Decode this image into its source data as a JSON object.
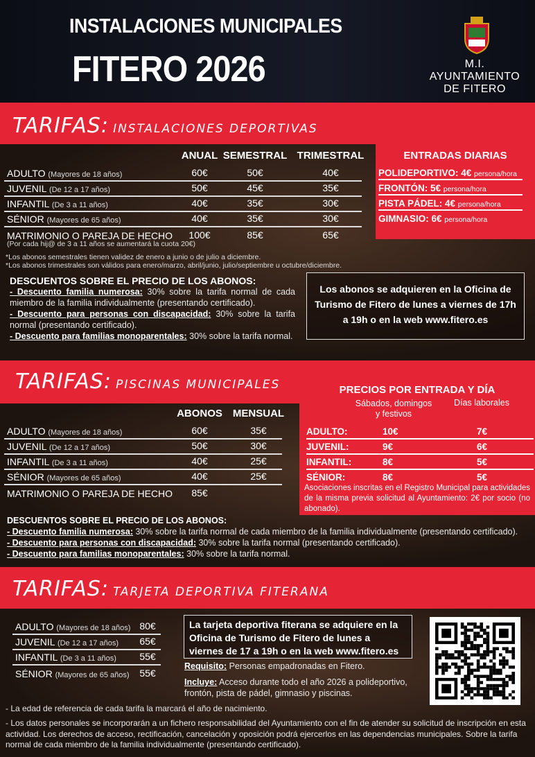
{
  "header": {
    "line1": "INSTALACIONES MUNICIPALES",
    "line2": "FITERO 2026",
    "org_line1": "M.I. AYUNTAMIENTO",
    "org_line2": "DE FITERO",
    "logo": "coat-of-arms"
  },
  "colors": {
    "accent": "#e52535",
    "dark": "#0f1118"
  },
  "deportivas": {
    "title_big": "TARIFAS:",
    "title_small": "Instalaciones deportivas",
    "columns": [
      "ANUAL",
      "SEMESTRAL",
      "TRIMESTRAL"
    ],
    "rows": [
      {
        "label": "ADULTO",
        "sub": "(Mayores de 18 años)",
        "values": [
          "60€",
          "50€",
          "40€"
        ]
      },
      {
        "label": "JUVENIL",
        "sub": "(De 12 a 17 años)",
        "values": [
          "50€",
          "45€",
          "35€"
        ]
      },
      {
        "label": "INFANTIL",
        "sub": "(De 3 a 11 años)",
        "values": [
          "40€",
          "35€",
          "30€"
        ]
      },
      {
        "label": "SÉNIOR",
        "sub": "(Mayores de 65 años)",
        "values": [
          "40€",
          "35€",
          "30€"
        ]
      },
      {
        "label": "MATRIMONIO O PAREJA DE HECHO",
        "sub": "",
        "values": [
          "100€",
          "85€",
          "65€"
        ]
      }
    ],
    "child_note": "(Por cada hij@ de 3 a 11 años se aumentará la cuota 20€)",
    "notes": [
      "*Los abonos semestrales tienen validez de enero a junio o de julio a diciembre.",
      "*Los abonos trimestrales son válidos para enero/marzo, abril/junio, julio/septiembre u octubre/diciembre."
    ],
    "daily": {
      "title": "ENTRADAS DIARIAS",
      "items": [
        {
          "label": "POLIDEPORTIVO: 4€",
          "unit": "persona/hora"
        },
        {
          "label": "FRONTÓN: 5€",
          "unit": "persona/hora"
        },
        {
          "label": "PISTA PÁDEL: 4€",
          "unit": "persona/hora"
        },
        {
          "label": "GIMNASIO: 6€",
          "unit": "persona/hora"
        }
      ]
    },
    "discounts": {
      "title": "DESCUENTOS SOBRE EL PRECIO DE LOS ABONOS:",
      "items": [
        {
          "label": "- Descuento familia numerosa:",
          "text": " 30% sobre la tarifa normal de cada miembro de la familia individualmente (presentando certificado)."
        },
        {
          "label": "- Descuento para personas con discapacidad:",
          "text": " 30% sobre la tarifa normal (presentando certificado)."
        },
        {
          "label": "- Descuento para familias monoparentales:",
          "text": " 30% sobre la tarifa normal."
        }
      ]
    },
    "purchase_box": "Los abonos se adquieren en la Oficina de Turismo de Fitero de lunes a viernes de 17h a 19h o en la web www.fitero.es"
  },
  "piscinas": {
    "title_big": "TARIFAS:",
    "title_small": "Piscinas municipales",
    "columns": [
      "ABONOS",
      "MENSUAL"
    ],
    "rows": [
      {
        "label": "ADULTO",
        "sub": "(Mayores de 18 años)",
        "values": [
          "60€",
          "35€"
        ]
      },
      {
        "label": "JUVENIL",
        "sub": "(De 12 a 17 años)",
        "values": [
          "50€",
          "30€"
        ]
      },
      {
        "label": "INFANTIL",
        "sub": "(De 3 a 11 años)",
        "values": [
          "40€",
          "25€"
        ]
      },
      {
        "label": "SÉNIOR",
        "sub": "(Mayores de 65 años)",
        "values": [
          "40€",
          "25€"
        ]
      },
      {
        "label": "MATRIMONIO O PAREJA DE HECHO",
        "sub": "",
        "values": [
          "85€",
          ""
        ]
      }
    ],
    "daily": {
      "title": "PRECIOS POR ENTRADA Y DÍA",
      "col1": "Sábados, domingos y festivos",
      "col2": "Días laborales",
      "rows": [
        {
          "label": "ADULTO:",
          "v1": "10€",
          "v2": "7€"
        },
        {
          "label": "JUVENIL:",
          "v1": "9€",
          "v2": "6€"
        },
        {
          "label": "INFANTIL:",
          "v1": "8€",
          "v2": "5€"
        },
        {
          "label": "SÉNIOR:",
          "v1": "8€",
          "v2": "5€"
        }
      ],
      "note": "Asociaciones inscritas en el Registro Municipal para actividades de la misma previa solicitud al Ayuntamiento: 2€ por socio (no abonado)."
    },
    "discounts": {
      "title": "DESCUENTOS SOBRE EL PRECIO DE LOS ABONOS:",
      "items": [
        {
          "label": "- Descuento familia numerosa:",
          "text": " 30% sobre la tarifa normal de cada miembro de la familia individualmente (presentando certificado)."
        },
        {
          "label": "- Descuento para personas con discapacidad:",
          "text": " 30% sobre la tarifa normal (presentando certificado)."
        },
        {
          "label": "- Descuento para familias monoparentales:",
          "text": " 30% sobre la tarifa normal."
        }
      ]
    }
  },
  "tarjeta": {
    "title_big": "TARIFAS:",
    "title_small": "Tarjeta deportiva fiterana",
    "rows": [
      {
        "label": "ADULTO",
        "sub": "(Mayores de 18 años)",
        "value": "80€"
      },
      {
        "label": "JUVENIL",
        "sub": "(De 12 a 17 años)",
        "value": "65€"
      },
      {
        "label": "INFANTIL",
        "sub": "(De 3 a 11 años)",
        "value": "55€"
      },
      {
        "label": "SÉNIOR",
        "sub": "(Mayores de 65 años)",
        "value": "55€"
      }
    ],
    "box": "La tarjeta deportiva fiterana se adquiere en la Oficina de Turismo de Fitero de lunes a viernes de 17 a 19h o en la web www.fitero.es",
    "req_label": "Requisito:",
    "req_text": " Personas empadronadas en Fitero.",
    "inc_label": "Incluye:",
    "inc_text": " Acceso durante todo el año 2026 a polideportivo, frontón, pista de pádel, gimnasio y piscinas.",
    "qr": "qr-code"
  },
  "footer": [
    "- La edad de referencia de cada tarifa la marcará el año de nacimiento.",
    "- Los datos personales se incorporarán a un fichero responsabilidad del Ayuntamiento con el fin de atender su solicitud de inscripción en esta actividad. Los derechos de acceso, rectificación, cancelación y oposición podrá ejercerlos en las dependencias municipales. Sobre la tarifa normal de cada miembro de la familia individualmente (presentando certificado)."
  ]
}
